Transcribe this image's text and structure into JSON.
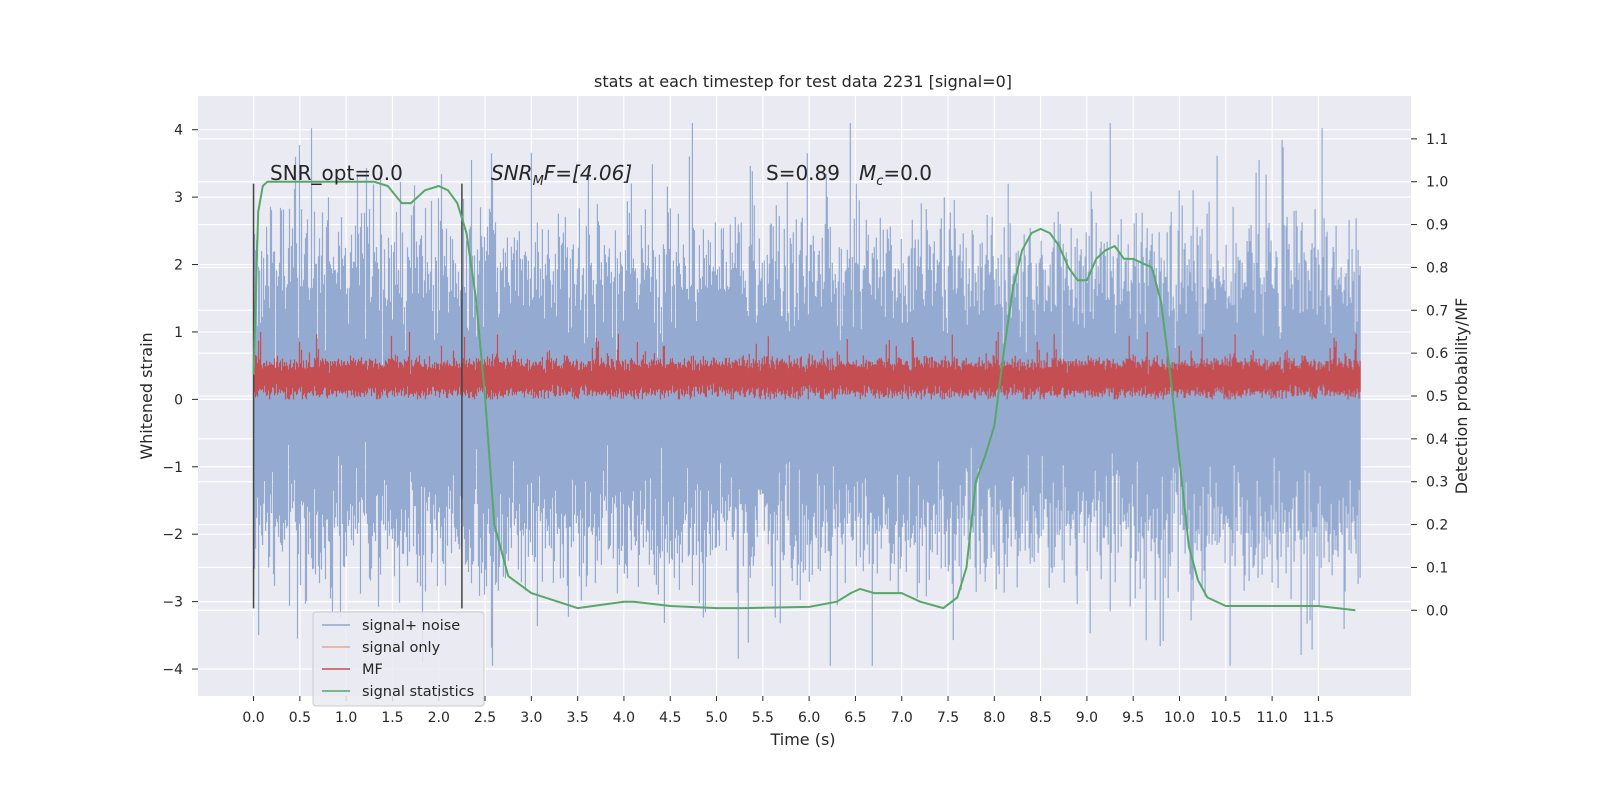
{
  "chart_data": {
    "type": "line",
    "title": "stats at each timestep for test data 2231 [signal=0]",
    "xlabel": "Time (s)",
    "ylabel": "Whitened strain",
    "ylabel_right": "Detection probability/MF",
    "xlim": [
      -0.6,
      12.5
    ],
    "ylim": [
      -4.4,
      4.5
    ],
    "ylim_right": [
      -0.2,
      1.2
    ],
    "x_ticks": [
      0.0,
      0.5,
      1.0,
      1.5,
      2.0,
      2.5,
      3.0,
      3.5,
      4.0,
      4.5,
      5.0,
      5.5,
      6.0,
      6.5,
      7.0,
      7.5,
      8.0,
      8.5,
      9.0,
      9.5,
      10.0,
      10.5,
      11.0,
      11.5
    ],
    "x_tick_labels": [
      "0.0",
      "0.5",
      "1.0",
      "1.5",
      "2.0",
      "2.5",
      "3.0",
      "3.5",
      "4.0",
      "4.5",
      "5.0",
      "5.5",
      "6.0",
      "6.5",
      "7.0",
      "7.5",
      "8.0",
      "8.5",
      "9.0",
      "9.5",
      "10.0",
      "10.5",
      "11.0",
      "11.5"
    ],
    "y_ticks": [
      4,
      3,
      2,
      1,
      0,
      -1,
      -2,
      -3,
      -4
    ],
    "y_tick_labels": [
      "4",
      "3",
      "2",
      "1",
      "0",
      "−1",
      "−2",
      "−3",
      "−4"
    ],
    "y_ticks_right": [
      1.1,
      1.0,
      0.9,
      0.8,
      0.7,
      0.6,
      0.5,
      0.4,
      0.3,
      0.2,
      0.1,
      0.0
    ],
    "y_tick_labels_right": [
      "1.1",
      "1.0",
      "0.9",
      "0.8",
      "0.7",
      "0.6",
      "0.5",
      "0.4",
      "0.3",
      "0.2",
      "0.1",
      "0.0"
    ],
    "grid": true,
    "legend_position": "lower-left",
    "vertical_lines_x": [
      0.0,
      2.25
    ],
    "annotations": [
      {
        "text": "SNR_opt=0.0"
      },
      {
        "text": "SNR",
        "sub": "M",
        "tail": "F=[4.06]"
      },
      {
        "text": "S=0.89"
      },
      {
        "text": "M",
        "sub": "c",
        "tail": "=0.0"
      }
    ],
    "series": [
      {
        "name": "signal+ noise",
        "color": "#8fa6cf",
        "axis": "left",
        "noise_band": {
          "x_start": 0.0,
          "x_end": 11.95,
          "typical_range": [
            -2.2,
            2.2
          ],
          "extreme_range": [
            -3.95,
            4.1
          ]
        }
      },
      {
        "name": "signal only",
        "color": "#e8a88a",
        "axis": "left",
        "values": "none visible"
      },
      {
        "name": "MF",
        "color": "#c44e52",
        "axis": "left",
        "noise_band": {
          "x_start": 0.0,
          "x_end": 11.95,
          "typical_range": [
            0.05,
            0.6
          ],
          "extreme_range": [
            0.0,
            1.0
          ]
        }
      },
      {
        "name": "signal statistics",
        "color": "#55a868",
        "axis": "right",
        "x": [
          0.0,
          0.05,
          0.1,
          0.15,
          0.25,
          0.5,
          1.0,
          1.3,
          1.45,
          1.6,
          1.7,
          1.85,
          2.0,
          2.1,
          2.2,
          2.3,
          2.4,
          2.5,
          2.6,
          2.75,
          3.0,
          3.5,
          4.0,
          4.1,
          4.5,
          5.0,
          5.3,
          6.0,
          6.3,
          6.45,
          6.55,
          6.7,
          7.0,
          7.2,
          7.45,
          7.6,
          7.7,
          7.8,
          7.9,
          8.0,
          8.1,
          8.2,
          8.3,
          8.4,
          8.5,
          8.6,
          8.7,
          8.8,
          8.9,
          9.0,
          9.1,
          9.2,
          9.3,
          9.4,
          9.5,
          9.7,
          9.8,
          9.9,
          10.0,
          10.1,
          10.2,
          10.3,
          10.5,
          11.0,
          11.5,
          11.9
        ],
        "values": [
          0.55,
          0.93,
          0.99,
          1.0,
          1.0,
          1.0,
          1.0,
          1.0,
          0.99,
          0.95,
          0.95,
          0.98,
          0.99,
          0.98,
          0.95,
          0.88,
          0.73,
          0.5,
          0.2,
          0.08,
          0.04,
          0.005,
          0.02,
          0.02,
          0.01,
          0.005,
          0.005,
          0.008,
          0.02,
          0.04,
          0.05,
          0.04,
          0.04,
          0.02,
          0.005,
          0.03,
          0.1,
          0.3,
          0.36,
          0.43,
          0.6,
          0.75,
          0.84,
          0.88,
          0.89,
          0.88,
          0.85,
          0.8,
          0.77,
          0.77,
          0.82,
          0.84,
          0.85,
          0.82,
          0.82,
          0.8,
          0.72,
          0.55,
          0.35,
          0.15,
          0.07,
          0.03,
          0.01,
          0.01,
          0.01,
          0.0
        ]
      }
    ]
  }
}
